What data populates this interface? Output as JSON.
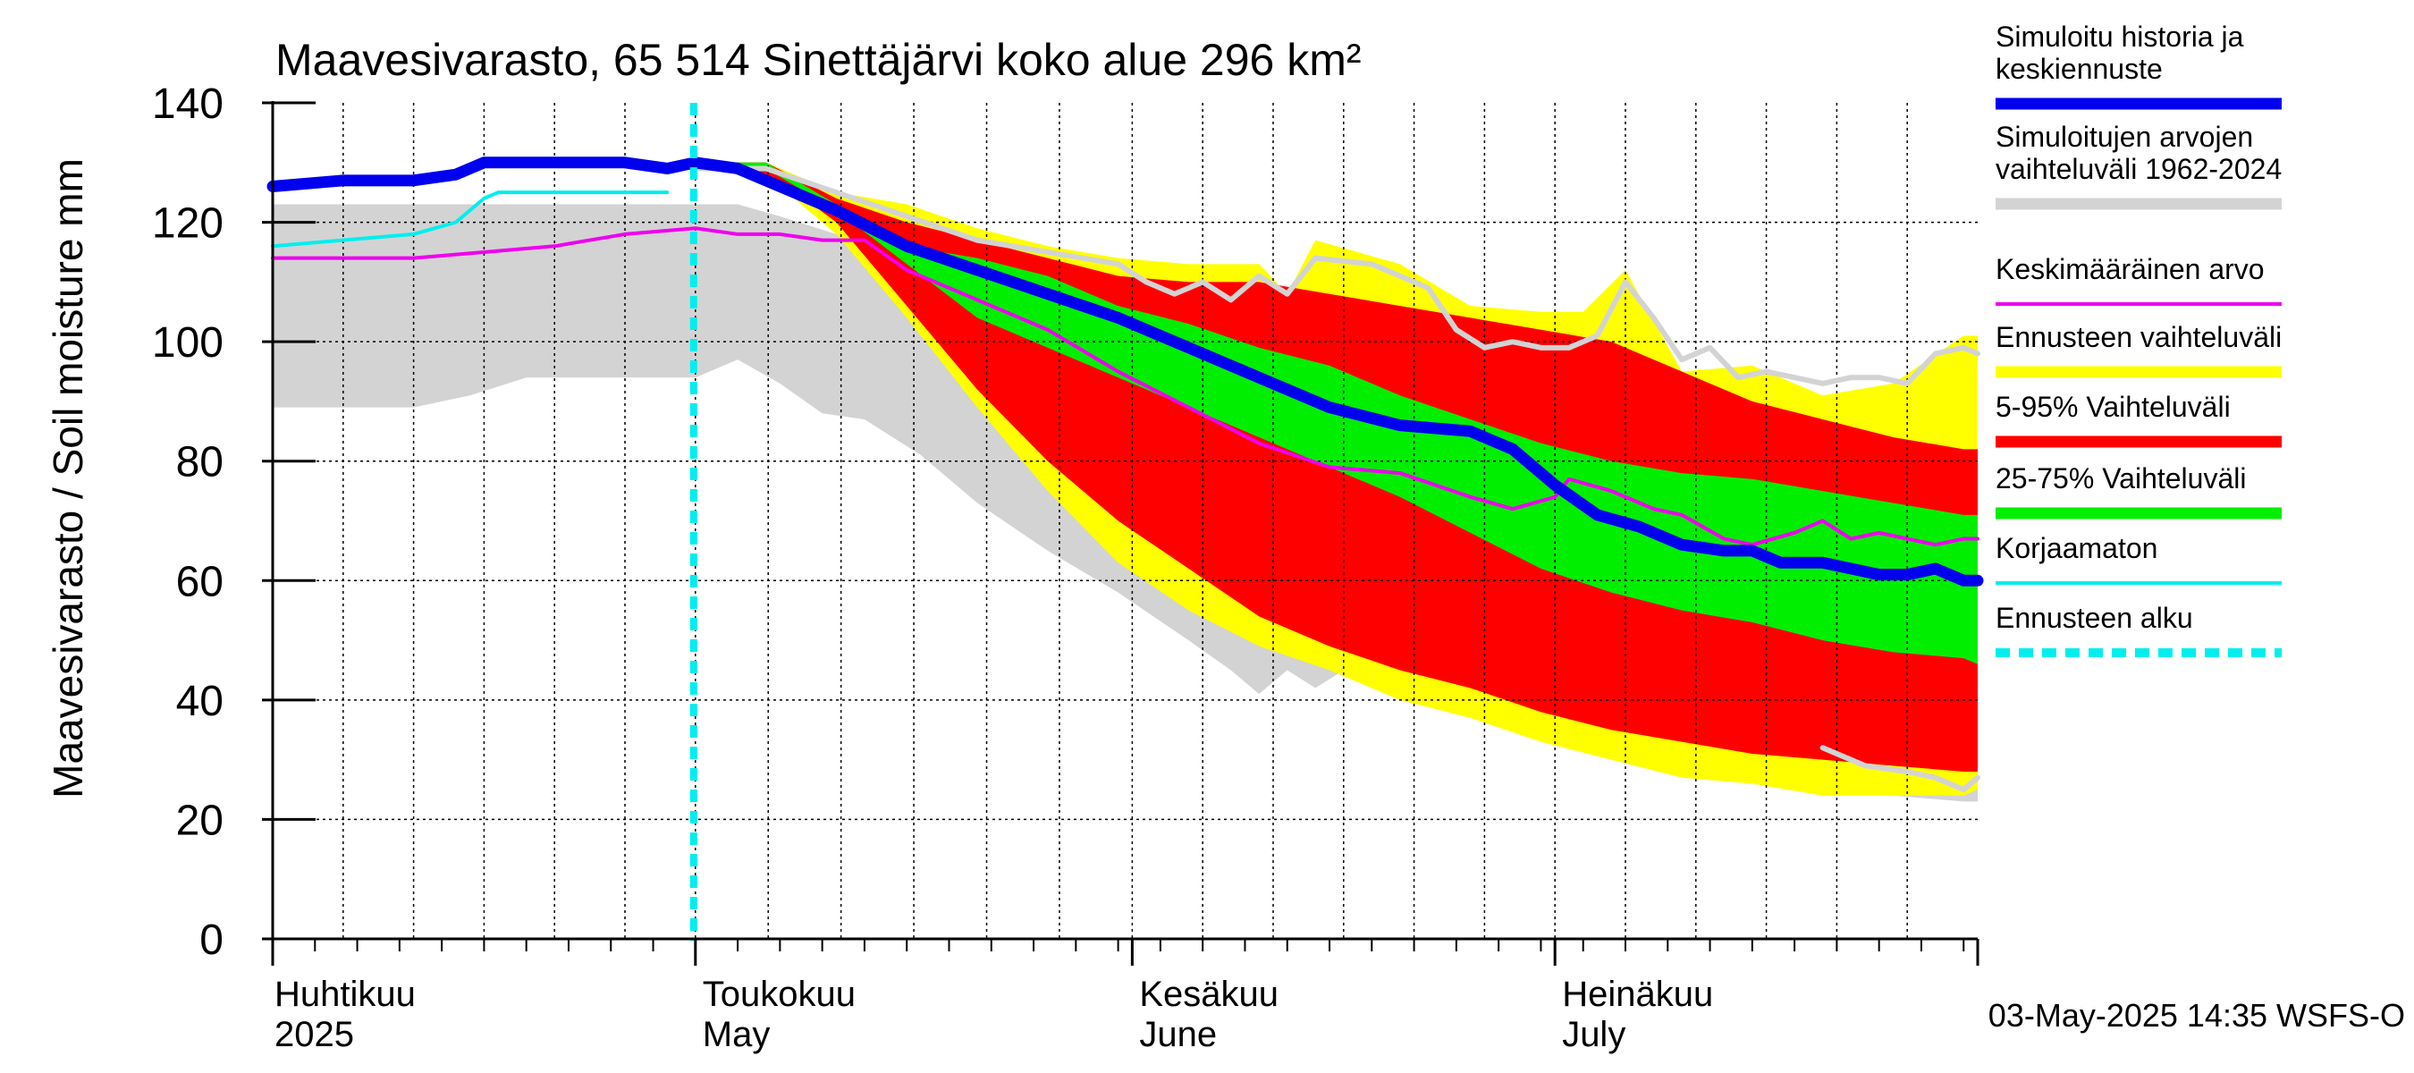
{
  "chart_data": {
    "type": "area",
    "title": "Maavesivarasto, 65 514 Sinettäjärvi koko alue 296 km²",
    "ylabel": "Maavesivarasto / Soil moisture   mm",
    "xlabel": "",
    "ylim": [
      0,
      140
    ],
    "yticks": [
      0,
      20,
      40,
      60,
      80,
      100,
      120,
      140
    ],
    "x_unit": "day index from 1 April 2025",
    "xlim": [
      0,
      121
    ],
    "grid": true,
    "legend_position": "right",
    "month_labels": [
      {
        "fi": "Huhtikuu",
        "en": "2025",
        "day": 0
      },
      {
        "fi": "Toukokuu",
        "en": "May",
        "day": 30
      },
      {
        "fi": "Kesäkuu",
        "en": "June",
        "day": 61
      },
      {
        "fi": "Heinäkuu",
        "en": "July",
        "day": 91
      }
    ],
    "forecast_start_day": 30,
    "timestamp": "03-May-2025 14:35 WSFS-O",
    "legend": [
      {
        "label": "Simuloitu historia ja\nkeskiennuste",
        "color": "#0000ee",
        "kind": "thick"
      },
      {
        "label": "Simuloitujen arvojen\nvaihteluväli 1962-2024",
        "color": "#d3d3d3",
        "kind": "thick"
      },
      {
        "label": "Keskimääräinen arvo",
        "color": "#ee00ee",
        "kind": "thin"
      },
      {
        "label": "Ennusteen vaihteluväli",
        "color": "#ffff00",
        "kind": "thick"
      },
      {
        "label": "5-95% Vaihteluväli",
        "color": "#ff0000",
        "kind": "thick"
      },
      {
        "label": "25-75% Vaihteluväli",
        "color": "#00ee00",
        "kind": "thick"
      },
      {
        "label": "Korjaamaton",
        "color": "#00eeee",
        "kind": "thin"
      },
      {
        "label": "Ennusteen alku",
        "color": "#00eeee",
        "kind": "dashed"
      }
    ],
    "series": [
      {
        "name": "hist_range",
        "color": "#d3d3d3",
        "upper": [
          [
            0,
            123
          ],
          [
            30,
            123
          ],
          [
            33,
            123
          ],
          [
            36,
            121
          ],
          [
            40,
            118
          ],
          [
            45,
            114
          ],
          [
            50,
            108
          ],
          [
            55,
            100
          ],
          [
            60,
            92
          ],
          [
            65,
            84
          ],
          [
            70,
            76
          ],
          [
            75,
            67
          ],
          [
            80,
            58
          ],
          [
            85,
            51
          ],
          [
            90,
            45
          ],
          [
            95,
            40
          ],
          [
            100,
            37
          ],
          [
            105,
            34
          ],
          [
            110,
            33
          ],
          [
            115,
            32
          ],
          [
            120,
            31
          ],
          [
            121,
            30
          ]
        ],
        "lower": [
          [
            0,
            89
          ],
          [
            10,
            89
          ],
          [
            14,
            91
          ],
          [
            18,
            94
          ],
          [
            30,
            94
          ],
          [
            33,
            97
          ],
          [
            36,
            93
          ],
          [
            39,
            88
          ],
          [
            42,
            87
          ],
          [
            46,
            81
          ],
          [
            50,
            73
          ],
          [
            55,
            65
          ],
          [
            60,
            58
          ],
          [
            65,
            50
          ],
          [
            68,
            45
          ],
          [
            70,
            41
          ],
          [
            72,
            45
          ],
          [
            74,
            42
          ],
          [
            76,
            45
          ],
          [
            80,
            42
          ],
          [
            85,
            39
          ],
          [
            90,
            35
          ],
          [
            95,
            33
          ],
          [
            100,
            29
          ],
          [
            105,
            27
          ],
          [
            110,
            25
          ],
          [
            115,
            24
          ],
          [
            120,
            23
          ],
          [
            121,
            23
          ]
        ]
      },
      {
        "name": "forecast_range",
        "color": "#ffff00",
        "upper": [
          [
            30,
            130
          ],
          [
            35,
            130
          ],
          [
            40,
            125
          ],
          [
            45,
            123
          ],
          [
            50,
            119
          ],
          [
            55,
            116
          ],
          [
            60,
            114
          ],
          [
            65,
            113
          ],
          [
            70,
            113
          ],
          [
            72,
            108
          ],
          [
            74,
            117
          ],
          [
            80,
            113
          ],
          [
            85,
            106
          ],
          [
            90,
            105
          ],
          [
            93,
            105
          ],
          [
            96,
            112
          ],
          [
            100,
            95
          ],
          [
            105,
            96
          ],
          [
            110,
            91
          ],
          [
            115,
            93
          ],
          [
            120,
            101
          ],
          [
            121,
            101
          ]
        ],
        "lower": [
          [
            30,
            130
          ],
          [
            33,
            129
          ],
          [
            36,
            126
          ],
          [
            40,
            118
          ],
          [
            45,
            104
          ],
          [
            50,
            89
          ],
          [
            55,
            75
          ],
          [
            60,
            63
          ],
          [
            65,
            55
          ],
          [
            70,
            49
          ],
          [
            75,
            45
          ],
          [
            80,
            40
          ],
          [
            85,
            37
          ],
          [
            90,
            33
          ],
          [
            95,
            30
          ],
          [
            100,
            27
          ],
          [
            105,
            26
          ],
          [
            110,
            24
          ],
          [
            115,
            24
          ],
          [
            120,
            24
          ],
          [
            121,
            25
          ]
        ]
      },
      {
        "name": "p5_95",
        "color": "#ff0000",
        "upper": [
          [
            30,
            130
          ],
          [
            35,
            130
          ],
          [
            40,
            124
          ],
          [
            45,
            120
          ],
          [
            50,
            117
          ],
          [
            55,
            114
          ],
          [
            60,
            111
          ],
          [
            65,
            110
          ],
          [
            70,
            110
          ],
          [
            75,
            108
          ],
          [
            80,
            106
          ],
          [
            85,
            104
          ],
          [
            90,
            102
          ],
          [
            95,
            100
          ],
          [
            100,
            95
          ],
          [
            105,
            90
          ],
          [
            110,
            87
          ],
          [
            115,
            84
          ],
          [
            120,
            82
          ],
          [
            121,
            82
          ]
        ],
        "lower": [
          [
            30,
            130
          ],
          [
            33,
            129
          ],
          [
            36,
            127
          ],
          [
            40,
            120
          ],
          [
            45,
            106
          ],
          [
            50,
            92
          ],
          [
            55,
            80
          ],
          [
            60,
            70
          ],
          [
            65,
            62
          ],
          [
            70,
            54
          ],
          [
            75,
            49
          ],
          [
            80,
            45
          ],
          [
            85,
            42
          ],
          [
            90,
            38
          ],
          [
            95,
            35
          ],
          [
            100,
            33
          ],
          [
            105,
            31
          ],
          [
            110,
            30
          ],
          [
            115,
            29
          ],
          [
            120,
            28
          ],
          [
            121,
            28
          ]
        ]
      },
      {
        "name": "p25_75",
        "color": "#00ee00",
        "upper": [
          [
            30,
            130
          ],
          [
            35,
            130
          ],
          [
            40,
            123
          ],
          [
            45,
            116
          ],
          [
            50,
            114
          ],
          [
            55,
            111
          ],
          [
            60,
            106
          ],
          [
            65,
            103
          ],
          [
            70,
            99
          ],
          [
            75,
            96
          ],
          [
            80,
            91
          ],
          [
            85,
            87
          ],
          [
            90,
            83
          ],
          [
            95,
            80
          ],
          [
            100,
            78
          ],
          [
            105,
            77
          ],
          [
            110,
            75
          ],
          [
            115,
            73
          ],
          [
            120,
            71
          ],
          [
            121,
            71
          ]
        ],
        "lower": [
          [
            30,
            130
          ],
          [
            35,
            129
          ],
          [
            40,
            122
          ],
          [
            45,
            113
          ],
          [
            50,
            104
          ],
          [
            55,
            99
          ],
          [
            60,
            94
          ],
          [
            65,
            89
          ],
          [
            70,
            84
          ],
          [
            75,
            79
          ],
          [
            80,
            74
          ],
          [
            85,
            68
          ],
          [
            90,
            62
          ],
          [
            95,
            58
          ],
          [
            100,
            55
          ],
          [
            105,
            53
          ],
          [
            110,
            50
          ],
          [
            115,
            48
          ],
          [
            120,
            47
          ],
          [
            121,
            46
          ]
        ]
      },
      {
        "name": "max_sim_gray",
        "color": "#d3d3d3",
        "points": [
          [
            30,
            129
          ],
          [
            35,
            129
          ],
          [
            40,
            125
          ],
          [
            45,
            121
          ],
          [
            50,
            117
          ],
          [
            55,
            115
          ],
          [
            60,
            113
          ],
          [
            62,
            110
          ],
          [
            64,
            108
          ],
          [
            66,
            110
          ],
          [
            68,
            107
          ],
          [
            70,
            111
          ],
          [
            72,
            108
          ],
          [
            74,
            114
          ],
          [
            78,
            113
          ],
          [
            82,
            109
          ],
          [
            84,
            102
          ],
          [
            86,
            99
          ],
          [
            88,
            100
          ],
          [
            90,
            99
          ],
          [
            92,
            99
          ],
          [
            94,
            101
          ],
          [
            96,
            110
          ],
          [
            98,
            104
          ],
          [
            100,
            97
          ],
          [
            102,
            99
          ],
          [
            104,
            94
          ],
          [
            106,
            95
          ],
          [
            108,
            94
          ],
          [
            110,
            93
          ],
          [
            112,
            94
          ],
          [
            114,
            94
          ],
          [
            116,
            93
          ],
          [
            118,
            98
          ],
          [
            120,
            99
          ],
          [
            121,
            98
          ]
        ]
      },
      {
        "name": "min_sim_gray",
        "color": "#d3d3d3",
        "points": [
          [
            110,
            32
          ],
          [
            113,
            29
          ],
          [
            116,
            28
          ],
          [
            118,
            27
          ],
          [
            120,
            25
          ],
          [
            121,
            27
          ]
        ]
      },
      {
        "name": "mean",
        "color": "#ee00ee",
        "points": [
          [
            0,
            114
          ],
          [
            10,
            114
          ],
          [
            15,
            115
          ],
          [
            20,
            116
          ],
          [
            25,
            118
          ],
          [
            30,
            119
          ],
          [
            33,
            118
          ],
          [
            36,
            118
          ],
          [
            39,
            117
          ],
          [
            42,
            117
          ],
          [
            45,
            112
          ],
          [
            50,
            107
          ],
          [
            55,
            102
          ],
          [
            60,
            95
          ],
          [
            65,
            89
          ],
          [
            70,
            83
          ],
          [
            75,
            79
          ],
          [
            80,
            78
          ],
          [
            85,
            74
          ],
          [
            88,
            72
          ],
          [
            91,
            74
          ],
          [
            92,
            77
          ],
          [
            95,
            75
          ],
          [
            98,
            72
          ],
          [
            100,
            71
          ],
          [
            103,
            67
          ],
          [
            105,
            66
          ],
          [
            108,
            68
          ],
          [
            110,
            70
          ],
          [
            112,
            67
          ],
          [
            114,
            68
          ],
          [
            116,
            67
          ],
          [
            118,
            66
          ],
          [
            120,
            67
          ],
          [
            121,
            67
          ]
        ]
      },
      {
        "name": "uncorrected",
        "color": "#00eeee",
        "points": [
          [
            0,
            116
          ],
          [
            5,
            117
          ],
          [
            10,
            118
          ],
          [
            13,
            120
          ],
          [
            14,
            122
          ],
          [
            15,
            124
          ],
          [
            16,
            125
          ],
          [
            20,
            125
          ],
          [
            25,
            125
          ],
          [
            28,
            125
          ]
        ]
      },
      {
        "name": "median_forecast",
        "color": "#0000ee",
        "points": [
          [
            0,
            126
          ],
          [
            5,
            127
          ],
          [
            10,
            127
          ],
          [
            13,
            128
          ],
          [
            15,
            130
          ],
          [
            20,
            130
          ],
          [
            25,
            130
          ],
          [
            28,
            129
          ],
          [
            30,
            130
          ],
          [
            33,
            129
          ],
          [
            36,
            126
          ],
          [
            40,
            122
          ],
          [
            45,
            116
          ],
          [
            50,
            112
          ],
          [
            55,
            108
          ],
          [
            60,
            104
          ],
          [
            65,
            99
          ],
          [
            70,
            94
          ],
          [
            75,
            89
          ],
          [
            80,
            86
          ],
          [
            85,
            85
          ],
          [
            88,
            82
          ],
          [
            91,
            76
          ],
          [
            94,
            71
          ],
          [
            97,
            69
          ],
          [
            100,
            66
          ],
          [
            103,
            65
          ],
          [
            105,
            65
          ],
          [
            107,
            63
          ],
          [
            110,
            63
          ],
          [
            112,
            62
          ],
          [
            114,
            61
          ],
          [
            116,
            61
          ],
          [
            118,
            62
          ],
          [
            120,
            60
          ],
          [
            121,
            60
          ]
        ]
      }
    ]
  }
}
